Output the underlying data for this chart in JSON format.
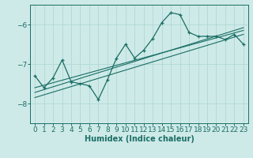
{
  "bg_color": "#ceeae8",
  "line_color": "#1a6e65",
  "grid_color": "#b0d8d4",
  "xlabel": "Humidex (Indice chaleur)",
  "xlim": [
    -0.5,
    23.5
  ],
  "ylim": [
    -8.5,
    -5.5
  ],
  "yticks": [
    -8,
    -7,
    -6
  ],
  "xticks": [
    0,
    1,
    2,
    3,
    4,
    5,
    6,
    7,
    8,
    9,
    10,
    11,
    12,
    13,
    14,
    15,
    16,
    17,
    18,
    19,
    20,
    21,
    22,
    23
  ],
  "main_x": [
    0,
    1,
    2,
    3,
    4,
    5,
    6,
    7,
    8,
    9,
    10,
    11,
    12,
    13,
    14,
    15,
    16,
    17,
    18,
    19,
    20,
    21,
    22,
    23
  ],
  "main_y": [
    -7.3,
    -7.6,
    -7.35,
    -6.9,
    -7.45,
    -7.5,
    -7.55,
    -7.9,
    -7.4,
    -6.85,
    -6.5,
    -6.85,
    -6.65,
    -6.35,
    -5.95,
    -5.7,
    -5.75,
    -6.2,
    -6.3,
    -6.3,
    -6.3,
    -6.38,
    -6.25,
    -6.5
  ],
  "trend1_x": [
    0,
    23
  ],
  "trend1_y": [
    -7.85,
    -6.25
  ],
  "trend2_x": [
    0,
    23
  ],
  "trend2_y": [
    -7.6,
    -6.15
  ],
  "trend3_x": [
    0,
    23
  ],
  "trend3_y": [
    -7.72,
    -6.08
  ]
}
